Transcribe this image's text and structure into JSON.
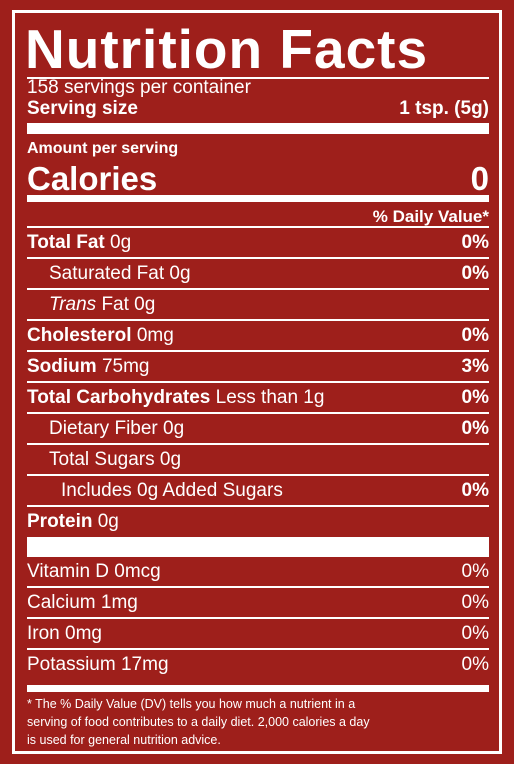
{
  "header": {
    "title": "Nutrition Facts",
    "servings": "158 servings per container",
    "serving_size_label": "Serving size",
    "serving_size_value": "1 tsp. (5g)"
  },
  "calories": {
    "amount_per_serving": "Amount per serving",
    "label": "Calories",
    "value": "0"
  },
  "dv_header": "% Daily Value*",
  "nutrients": [
    {
      "name": "Total Fat",
      "amount": "0g",
      "dv": "0%"
    },
    {
      "name": "Saturated Fat",
      "amount": "0g",
      "dv": "0%"
    },
    {
      "name": "Trans",
      "amount": "Fat 0g"
    },
    {
      "name": "Cholesterol",
      "amount": "0mg",
      "dv": "0%"
    },
    {
      "name": "Sodium",
      "amount": "75mg",
      "dv": "3%"
    },
    {
      "name": "Total Carbohydrates",
      "amount": "Less than 1g",
      "dv": "0%"
    },
    {
      "name": "Dietary Fiber",
      "amount": "0g",
      "dv": "0%"
    },
    {
      "name": "Total Sugars",
      "amount": "0g"
    },
    {
      "name": "Includes 0g Added Sugars",
      "dv": "0%"
    },
    {
      "name": "Protein",
      "amount": "0g"
    }
  ],
  "vitamins": [
    {
      "name": "Vitamin D 0mcg",
      "dv": "0%"
    },
    {
      "name": "Calcium 1mg",
      "dv": "0%"
    },
    {
      "name": "Iron 0mg",
      "dv": "0%"
    },
    {
      "name": "Potassium 17mg",
      "dv": "0%"
    }
  ],
  "footnote": [
    "* The % Daily Value (DV) tells you how much a nutrient in a",
    "serving of food  contributes to a daily diet. 2,000 calories a day",
    "is used for general nutrition advice."
  ]
}
